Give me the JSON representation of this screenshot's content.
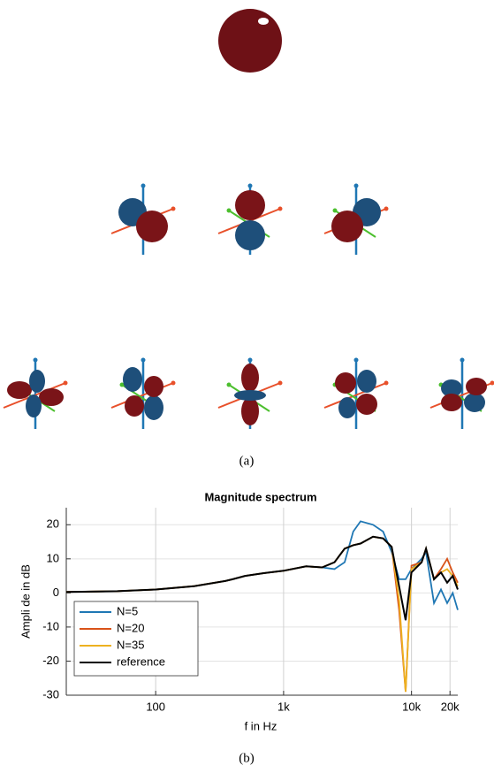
{
  "captions": {
    "a": "(a)",
    "b": "(b)"
  },
  "chart_data": {
    "type": "line",
    "title": "Magnitude spectrum",
    "xlabel": "f in Hz",
    "ylabel": "Ampli  de in dB",
    "x": [
      20,
      50,
      100,
      200,
      350,
      400,
      500,
      700,
      1000,
      1500,
      2000,
      2500,
      3000,
      3500,
      4000,
      5000,
      6000,
      7000,
      8000,
      9000,
      10000,
      12000,
      13000,
      15000,
      17000,
      19000,
      21000,
      23000
    ],
    "series": [
      {
        "name": "N=5",
        "color": "#1f77b4",
        "values": [
          0.3,
          0.5,
          1.0,
          2.0,
          3.5,
          4,
          5,
          5.8,
          6.5,
          7.8,
          7.5,
          7,
          9,
          18,
          21,
          20,
          18,
          12,
          4,
          4,
          7,
          10,
          12,
          -3,
          1,
          -3,
          0,
          -5
        ]
      },
      {
        "name": "N=20",
        "color": "#d95319",
        "values": [
          0.3,
          0.5,
          1.0,
          2.0,
          3.5,
          4,
          5,
          5.8,
          6.5,
          7.8,
          7.5,
          9,
          13,
          14,
          14.5,
          16.5,
          16,
          13.5,
          -5,
          -29,
          8,
          9,
          13,
          4,
          7,
          10,
          6,
          3
        ]
      },
      {
        "name": "N=35",
        "color": "#edb120",
        "values": [
          0.3,
          0.5,
          1.0,
          2.0,
          3.5,
          4,
          5,
          5.8,
          6.5,
          7.8,
          7.5,
          9,
          13,
          14,
          14.5,
          16.5,
          16,
          13.5,
          -2,
          -29,
          7,
          9,
          13,
          4,
          6,
          7,
          5,
          2
        ]
      },
      {
        "name": "reference",
        "color": "#000000",
        "values": [
          0.3,
          0.5,
          1.0,
          2.0,
          3.5,
          4,
          5,
          5.8,
          6.5,
          7.8,
          7.5,
          9,
          13,
          14,
          14.5,
          16.5,
          16,
          13.5,
          2,
          -8,
          6,
          9,
          13,
          4,
          6,
          3,
          5,
          1
        ]
      }
    ],
    "xlim": [
      20,
      23000
    ],
    "log_x": true,
    "xticks": [
      100,
      {
        "value": 1000,
        "label": "1k"
      },
      {
        "value": 10000,
        "label": "10k"
      },
      {
        "value": 20000,
        "label": "20k"
      }
    ],
    "ylim": [
      -30,
      25
    ],
    "yticks": [
      -30,
      -20,
      -10,
      0,
      10,
      20
    ],
    "grid": true,
    "legend": "lower left"
  }
}
